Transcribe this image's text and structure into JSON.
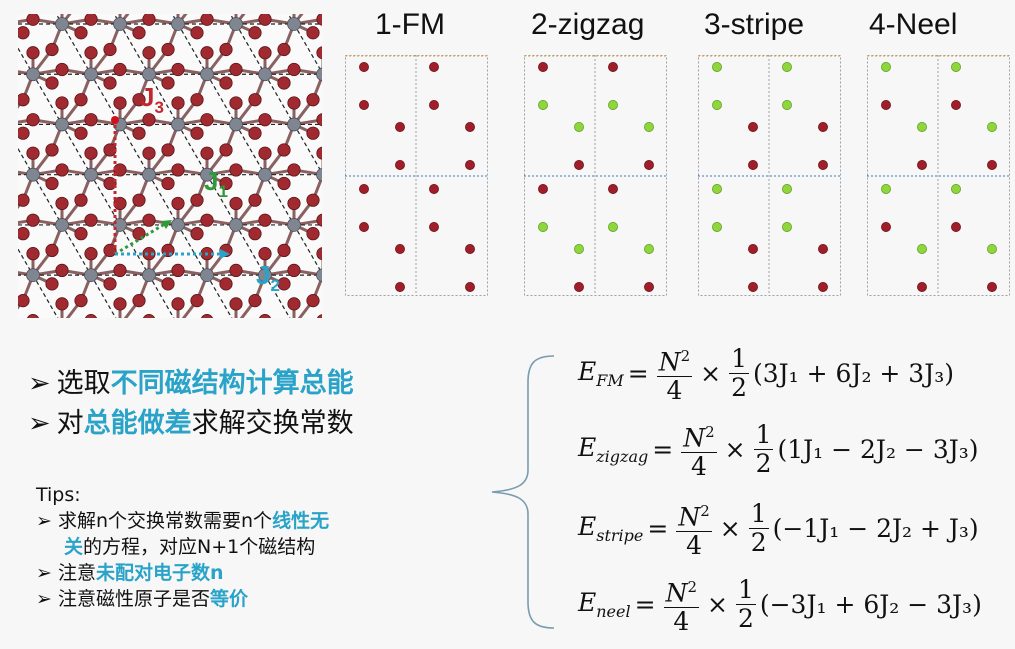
{
  "lattice": {
    "labels": {
      "j3": {
        "base": "J",
        "sub": "3",
        "color": "#c0282f"
      },
      "j1": {
        "base": "J",
        "sub": "1",
        "color": "#2f9a3a"
      },
      "j2": {
        "base": "J",
        "sub": "2",
        "color": "#2aa3c9"
      }
    },
    "atom_colors": {
      "cation": "#7f8591",
      "anion": "#a02a30"
    }
  },
  "configs": [
    {
      "title": "1-FM",
      "dots": [
        "r",
        "r",
        "r",
        "r",
        "r",
        "r",
        "r",
        "r",
        "r",
        "r",
        "r",
        "r",
        "r",
        "r",
        "r",
        "r"
      ]
    },
    {
      "title": "2-zigzag",
      "dots": [
        "r",
        "r",
        "g",
        "g",
        "g",
        "g",
        "r",
        "r",
        "r",
        "r",
        "g",
        "g",
        "g",
        "g",
        "r",
        "r"
      ]
    },
    {
      "title": "3-stripe",
      "dots": [
        "g",
        "g",
        "g",
        "g",
        "r",
        "r",
        "r",
        "r",
        "g",
        "g",
        "g",
        "g",
        "r",
        "r",
        "r",
        "r"
      ]
    },
    {
      "title": "4-Neel",
      "dots": [
        "g",
        "g",
        "r",
        "r",
        "g",
        "g",
        "r",
        "r",
        "g",
        "g",
        "r",
        "r",
        "g",
        "g",
        "r",
        "r"
      ]
    }
  ],
  "dot_colors": {
    "r": "#a01e2a",
    "g": "#8fd63a"
  },
  "bullets": [
    {
      "arrow": "➢",
      "parts": [
        {
          "t": "选取",
          "hl": false
        },
        {
          "t": "不同磁结构计算总能",
          "hl": true
        }
      ]
    },
    {
      "arrow": "➢",
      "parts": [
        {
          "t": "对",
          "hl": false
        },
        {
          "t": "总能做差",
          "hl": true
        },
        {
          "t": "求解交换常数",
          "hl": false
        }
      ]
    }
  ],
  "tips": {
    "title": "Tips:",
    "items": [
      {
        "arrow": "➢",
        "lines": [
          [
            {
              "t": "求解n个交换常数需要n个",
              "hl": false
            },
            {
              "t": "线性无",
              "hl": true
            }
          ],
          [
            {
              "t": "关",
              "hl": true
            },
            {
              "t": "的方程，对应N+1个磁结构",
              "hl": false
            }
          ]
        ]
      },
      {
        "arrow": "➢",
        "lines": [
          [
            {
              "t": "注意",
              "hl": false
            },
            {
              "t": "未配对电子数n",
              "hl": true
            }
          ]
        ]
      },
      {
        "arrow": "➢",
        "lines": [
          [
            {
              "t": "注意磁性原子是否",
              "hl": false
            },
            {
              "t": "等价",
              "hl": true
            }
          ]
        ]
      }
    ]
  },
  "equations": [
    {
      "name": "FM",
      "lhs": "E",
      "sub": "FM",
      "num1": "N",
      "sup": "2",
      "den1": "4",
      "times": "×",
      "num2": "1",
      "den2": "2",
      "rhs": "(3J₁ + 6J₂ + 3J₃)"
    },
    {
      "name": "zigzag",
      "lhs": "E",
      "sub": "zigzag",
      "num1": "N",
      "sup": "2",
      "den1": "4",
      "times": "×",
      "num2": "1",
      "den2": "2",
      "rhs": "(1J₁ − 2J₂ − 3J₃)"
    },
    {
      "name": "stripe",
      "lhs": "E",
      "sub": "stripe",
      "num1": "N",
      "sup": "2",
      "den1": "4",
      "times": "×",
      "num2": "1",
      "den2": "2",
      "rhs": "(−1J₁ − 2J₂ + J₃)"
    },
    {
      "name": "neel",
      "lhs": "E",
      "sub": "neel",
      "num1": "N",
      "sup": "2",
      "den1": "4",
      "times": "×",
      "num2": "1",
      "den2": "2",
      "rhs": "(−3J₁ + 6J₂ − 3J₃)"
    }
  ]
}
